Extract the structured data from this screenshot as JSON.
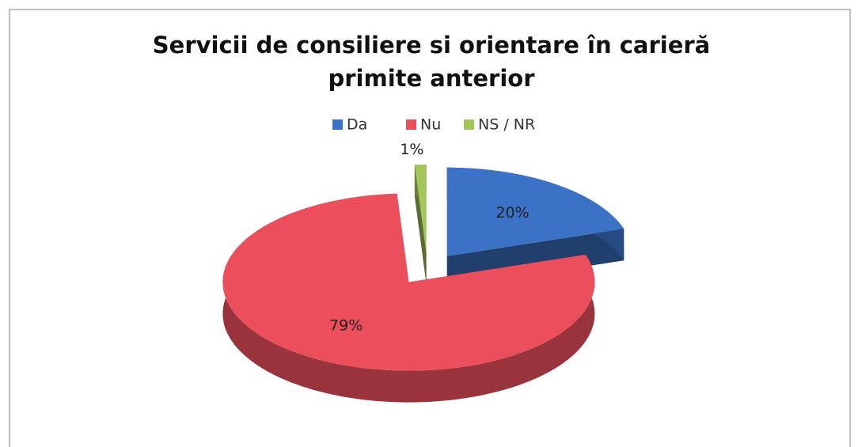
{
  "chart_data": {
    "type": "pie",
    "title": "Servicii de consiliere si orientare în carieră primite anterior",
    "categories": [
      "Da",
      "Nu",
      "NS / NR"
    ],
    "values": [
      20,
      79,
      1
    ],
    "value_labels": [
      "20%",
      "79%",
      "1%"
    ],
    "colors": [
      "#3b72c6",
      "#ec4f5c",
      "#a4c55a"
    ],
    "legend": "top",
    "exploded": true,
    "3d": true
  }
}
